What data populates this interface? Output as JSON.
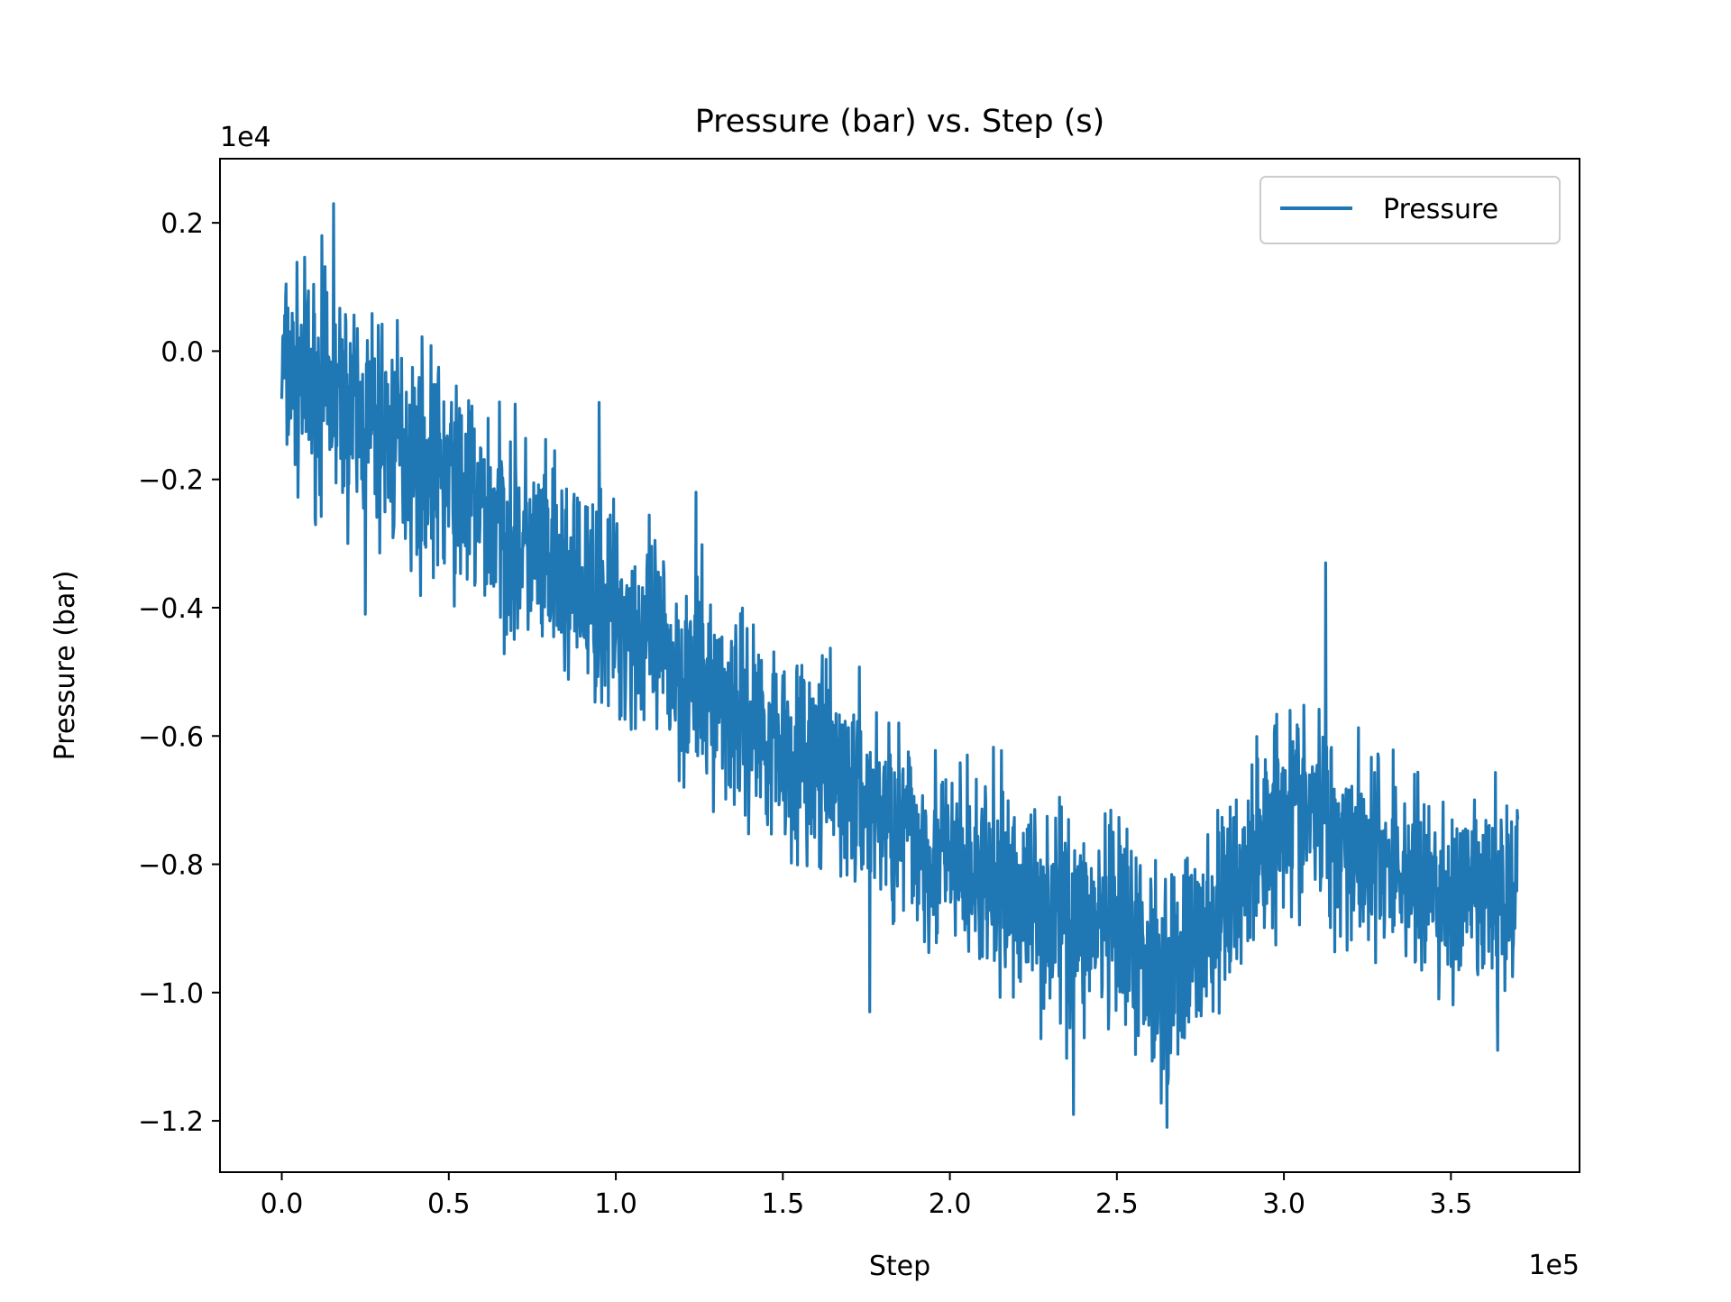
{
  "chart_data": {
    "type": "line",
    "title": "Pressure (bar) vs. Step (s)",
    "xlabel": "Step",
    "ylabel": "Pressure (bar)",
    "x_offset_label": "1e5",
    "y_offset_label": "1e4",
    "xlim": [
      -18500,
      388500
    ],
    "ylim": [
      -12800,
      3000
    ],
    "x_ticks": [
      0,
      50000,
      100000,
      150000,
      200000,
      250000,
      300000,
      350000
    ],
    "x_tick_labels": [
      "0.0",
      "0.5",
      "1.0",
      "1.5",
      "2.0",
      "2.5",
      "3.0",
      "3.5"
    ],
    "y_ticks": [
      2000,
      0,
      -2000,
      -4000,
      -6000,
      -8000,
      -10000,
      -12000
    ],
    "y_tick_labels": [
      "0.2",
      "0.0",
      "−0.2",
      "−0.4",
      "−0.6",
      "−0.8",
      "−1.0",
      "−1.2"
    ],
    "grid": false,
    "legend_position": "upper right",
    "series": [
      {
        "name": "Pressure",
        "color": "#1f77b4",
        "trend": [
          {
            "x": 0,
            "mean": -300,
            "amp": 1700
          },
          {
            "x": 20000,
            "mean": -900,
            "amp": 1900
          },
          {
            "x": 50000,
            "mean": -2000,
            "amp": 1800
          },
          {
            "x": 80000,
            "mean": -3400,
            "amp": 1800
          },
          {
            "x": 100000,
            "mean": -4100,
            "amp": 1700
          },
          {
            "x": 120000,
            "mean": -5000,
            "amp": 1800
          },
          {
            "x": 150000,
            "mean": -6100,
            "amp": 1700
          },
          {
            "x": 175000,
            "mean": -7000,
            "amp": 1700
          },
          {
            "x": 200000,
            "mean": -8000,
            "amp": 1700
          },
          {
            "x": 225000,
            "mean": -8600,
            "amp": 1800
          },
          {
            "x": 250000,
            "mean": -9100,
            "amp": 1800
          },
          {
            "x": 265000,
            "mean": -9700,
            "amp": 1800
          },
          {
            "x": 280000,
            "mean": -8900,
            "amp": 1700
          },
          {
            "x": 300000,
            "mean": -7000,
            "amp": 1800
          },
          {
            "x": 320000,
            "mean": -7600,
            "amp": 1700
          },
          {
            "x": 350000,
            "mean": -8600,
            "amp": 1700
          },
          {
            "x": 370000,
            "mean": -8400,
            "amp": 1600
          }
        ],
        "extremes": [
          {
            "x": 15500,
            "y": 2300
          },
          {
            "x": 12000,
            "y": 1800
          },
          {
            "x": 25000,
            "y": -4100
          },
          {
            "x": 95000,
            "y": -800
          },
          {
            "x": 124000,
            "y": -2200
          },
          {
            "x": 176000,
            "y": -10300
          },
          {
            "x": 237000,
            "y": -11900
          },
          {
            "x": 265000,
            "y": -12100
          },
          {
            "x": 312500,
            "y": -3300
          },
          {
            "x": 364000,
            "y": -10900
          },
          {
            "x": 370000,
            "y": -7300
          }
        ]
      }
    ]
  }
}
